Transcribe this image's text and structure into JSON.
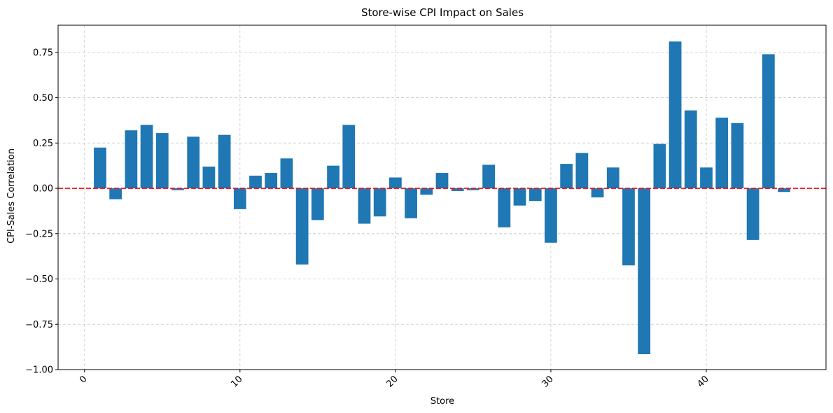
{
  "chart_data": {
    "type": "bar",
    "title": "Store-wise CPI Impact on Sales",
    "xlabel": "Store",
    "ylabel": "CPI-Sales Correlation",
    "x": [
      1,
      2,
      3,
      4,
      5,
      6,
      7,
      8,
      9,
      10,
      11,
      12,
      13,
      14,
      15,
      16,
      17,
      18,
      19,
      20,
      21,
      22,
      23,
      24,
      25,
      26,
      27,
      28,
      29,
      30,
      31,
      32,
      33,
      34,
      35,
      36,
      37,
      38,
      39,
      40,
      41,
      42,
      43,
      44,
      45
    ],
    "values": [
      0.225,
      -0.06,
      0.32,
      0.35,
      0.305,
      -0.01,
      0.285,
      0.12,
      0.295,
      -0.115,
      0.07,
      0.085,
      0.165,
      -0.42,
      -0.175,
      0.125,
      0.35,
      -0.195,
      -0.155,
      0.06,
      -0.165,
      -0.035,
      0.085,
      -0.015,
      -0.01,
      0.13,
      -0.215,
      -0.095,
      -0.07,
      -0.3,
      0.135,
      0.195,
      -0.05,
      0.115,
      -0.425,
      -0.915,
      0.245,
      0.81,
      0.43,
      0.115,
      0.39,
      0.36,
      -0.285,
      0.74,
      -0.02
    ],
    "xlim": [
      -1.7,
      47.7
    ],
    "ylim": [
      -1.0,
      0.9
    ],
    "xticks": [
      0,
      10,
      20,
      30,
      40
    ],
    "xtick_labels": [
      "0",
      "10",
      "20",
      "30",
      "40"
    ],
    "yticks": [
      0.75,
      0.5,
      0.25,
      0.0,
      -0.25,
      -0.5,
      -0.75,
      -1.0
    ],
    "ytick_labels": [
      "0.75",
      "0.50",
      "0.25",
      "0.00",
      "−0.25",
      "−0.50",
      "−0.75",
      "−1.00"
    ],
    "xtick_rotation_deg": 45,
    "grid": true,
    "bar_color": "#1f77b4",
    "reference_line": {
      "y": 0,
      "color": "#ff0000",
      "style": "dashed"
    }
  }
}
